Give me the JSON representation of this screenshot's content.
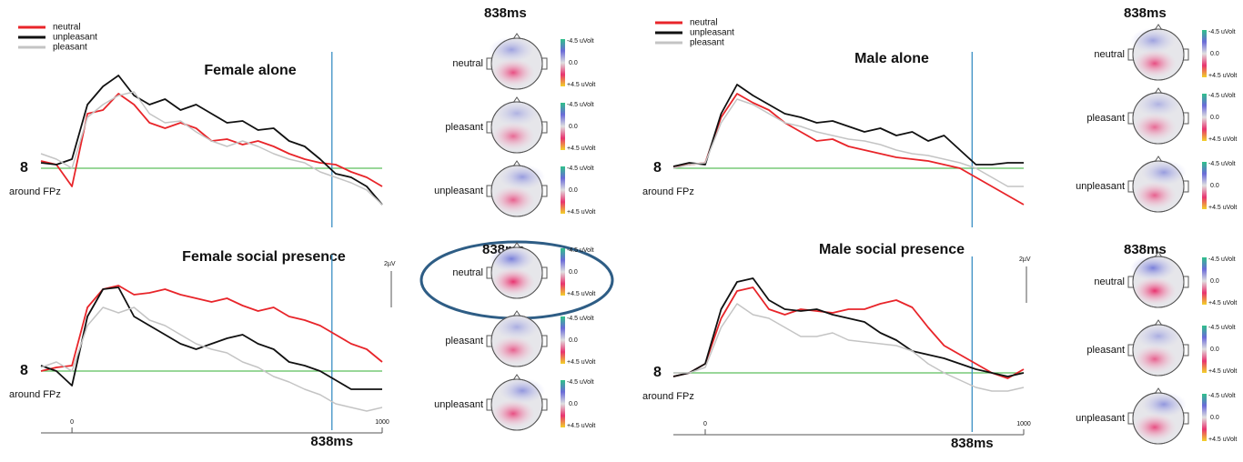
{
  "chart_data": [
    {
      "type": "line",
      "title": "Female alone",
      "channel": "8",
      "channel_label": "around FPz",
      "legend": true,
      "x": [
        -100,
        -50,
        0,
        50,
        100,
        150,
        200,
        250,
        300,
        350,
        400,
        450,
        500,
        550,
        600,
        650,
        700,
        750,
        800,
        850,
        900,
        950,
        1000
      ],
      "xlim": [
        -100,
        1000
      ],
      "ylim": [
        -3,
        6
      ],
      "cursor": 838,
      "series": [
        {
          "name": "neutral",
          "color": "#e8252a",
          "values": [
            0.4,
            0.2,
            -1,
            3,
            3.2,
            4.1,
            3.5,
            2.5,
            2.2,
            2.5,
            2.2,
            1.5,
            1.6,
            1.3,
            1.5,
            1.2,
            0.8,
            0.5,
            0.3,
            0.2,
            -0.2,
            -0.5,
            -1
          ]
        },
        {
          "name": "unpleasant",
          "color": "#111111",
          "values": [
            0.3,
            0.2,
            0.5,
            3.5,
            4.5,
            5.1,
            4,
            3.5,
            3.8,
            3.2,
            3.5,
            3,
            2.5,
            2.6,
            2.1,
            2.2,
            1.5,
            1.2,
            0.5,
            -0.3,
            -0.5,
            -1,
            -2
          ]
        },
        {
          "name": "pleasant",
          "color": "#c4c4c4",
          "values": [
            0.8,
            0.5,
            0,
            2.8,
            3.5,
            4,
            4.2,
            3,
            2.5,
            2.6,
            2,
            1.5,
            1.2,
            1.5,
            1.2,
            0.8,
            0.5,
            0.3,
            -0.2,
            -0.5,
            -0.8,
            -1.2,
            -2
          ]
        }
      ]
    },
    {
      "type": "line",
      "title": "Female social presence",
      "channel": "8",
      "channel_label": "around FPz",
      "legend": false,
      "x": [
        -100,
        -50,
        0,
        50,
        100,
        150,
        200,
        250,
        300,
        350,
        400,
        450,
        500,
        550,
        600,
        650,
        700,
        750,
        800,
        850,
        900,
        950,
        1000
      ],
      "xlim": [
        -100,
        1000
      ],
      "ylim": [
        -3,
        6
      ],
      "xticks": [
        0,
        1000
      ],
      "cursor": 838,
      "cursor_label": "838ms",
      "scale_label": "2µV",
      "series": [
        {
          "name": "neutral",
          "color": "#e8252a",
          "values": [
            0,
            0.2,
            0.3,
            3.5,
            4.5,
            4.7,
            4.2,
            4.3,
            4.5,
            4.2,
            4,
            3.8,
            4,
            3.6,
            3.3,
            3.5,
            3,
            2.8,
            2.5,
            2,
            1.5,
            1.2,
            0.5
          ]
        },
        {
          "name": "unpleasant",
          "color": "#111111",
          "values": [
            0.3,
            0,
            -0.8,
            3,
            4.5,
            4.6,
            3,
            2.5,
            2,
            1.5,
            1.2,
            1.5,
            1.8,
            2,
            1.5,
            1.2,
            0.5,
            0.3,
            0,
            -0.5,
            -1,
            -1,
            -1
          ]
        },
        {
          "name": "pleasant",
          "color": "#c4c4c4",
          "values": [
            0.2,
            0.5,
            0,
            2.5,
            3.5,
            3.2,
            3.5,
            2.8,
            2.5,
            2,
            1.5,
            1.2,
            1,
            0.5,
            0.2,
            -0.3,
            -0.6,
            -1,
            -1.3,
            -1.8,
            -2,
            -2.2,
            -2
          ]
        }
      ]
    },
    {
      "type": "line",
      "title": "Male alone",
      "channel": "8",
      "channel_label": "around FPz",
      "legend": true,
      "x": [
        -100,
        -50,
        0,
        50,
        100,
        150,
        200,
        250,
        300,
        350,
        400,
        450,
        500,
        550,
        600,
        650,
        700,
        750,
        800,
        850,
        900,
        950,
        1000
      ],
      "xlim": [
        -100,
        1000
      ],
      "ylim": [
        -3,
        6
      ],
      "cursor": 838,
      "series": [
        {
          "name": "neutral",
          "color": "#e8252a",
          "values": [
            0.1,
            0.2,
            0.3,
            2.8,
            4.1,
            3.6,
            3.2,
            2.5,
            2,
            1.5,
            1.6,
            1.2,
            1,
            0.8,
            0.6,
            0.5,
            0.4,
            0.2,
            0,
            -0.5,
            -1,
            -1.5,
            -2
          ]
        },
        {
          "name": "unpleasant",
          "color": "#111111",
          "values": [
            0.1,
            0.3,
            0.2,
            3,
            4.6,
            4,
            3.5,
            3,
            2.8,
            2.5,
            2.6,
            2.3,
            2,
            2.2,
            1.8,
            2,
            1.5,
            1.8,
            1,
            0.2,
            0.2,
            0.3,
            0.3
          ]
        },
        {
          "name": "pleasant",
          "color": "#c4c4c4",
          "values": [
            0,
            0.2,
            0.3,
            2.5,
            3.8,
            3.5,
            3,
            2.5,
            2.3,
            2,
            1.8,
            1.6,
            1.5,
            1.3,
            1,
            0.8,
            0.7,
            0.5,
            0.3,
            0,
            -0.5,
            -1,
            -1
          ]
        }
      ]
    },
    {
      "type": "line",
      "title": "Male social presence",
      "channel": "8",
      "channel_label": "around FPz",
      "legend": false,
      "x": [
        -100,
        -50,
        0,
        50,
        100,
        150,
        200,
        250,
        300,
        350,
        400,
        450,
        500,
        550,
        600,
        650,
        700,
        750,
        800,
        850,
        900,
        950,
        1000
      ],
      "xlim": [
        -100,
        1000
      ],
      "ylim": [
        -3,
        6
      ],
      "xticks": [
        0,
        1000
      ],
      "cursor": 838,
      "cursor_label": "838ms",
      "scale_label": "2µV",
      "series": [
        {
          "name": "neutral",
          "color": "#e8252a",
          "values": [
            -0.2,
            0,
            0.5,
            3,
            4.5,
            4.7,
            3.5,
            3.2,
            3.5,
            3.4,
            3.3,
            3.5,
            3.5,
            3.8,
            4,
            3.6,
            2.5,
            1.5,
            1,
            0.5,
            0,
            -0.3,
            0.2
          ]
        },
        {
          "name": "unpleasant",
          "color": "#111111",
          "values": [
            -0.2,
            0,
            0.5,
            3.5,
            5,
            5.2,
            4,
            3.5,
            3.4,
            3.5,
            3.2,
            3,
            2.8,
            2.2,
            1.8,
            1.2,
            1,
            0.8,
            0.5,
            0.2,
            0,
            -0.2,
            0
          ]
        },
        {
          "name": "pleasant",
          "color": "#c4c4c4",
          "values": [
            0,
            0,
            0.3,
            2.5,
            3.8,
            3.2,
            3,
            2.5,
            2,
            2,
            2.2,
            1.8,
            1.7,
            1.6,
            1.5,
            1.2,
            0.5,
            0,
            -0.4,
            -0.8,
            -1,
            -1,
            -0.8
          ]
        }
      ]
    }
  ],
  "topomaps": [
    {
      "time": "838ms",
      "maps": [
        "neutral",
        "pleasant",
        "unpleasant"
      ]
    },
    {
      "time": "838ms",
      "maps": [
        "neutral",
        "pleasant",
        "unpleasant"
      ]
    },
    {
      "time": "838ms",
      "maps": [
        "neutral",
        "pleasant",
        "unpleasant"
      ]
    },
    {
      "time": "838ms",
      "maps": [
        "neutral",
        "pleasant",
        "unpleasant"
      ]
    }
  ],
  "colorbar": {
    "top": "-4.5 uVolt",
    "mid": "0.0",
    "bottom": "+4.5 uVolt"
  }
}
